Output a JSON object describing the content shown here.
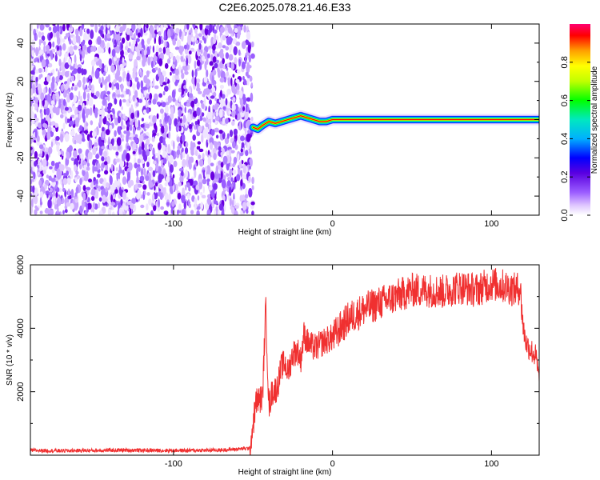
{
  "title": "C2E6.2025.078.21.46.E33",
  "chart_data": [
    {
      "type": "heatmap",
      "xlabel": "Height of straight line (km)",
      "ylabel": "Frequency (Hz)",
      "xlim": [
        -190,
        130
      ],
      "ylim": [
        -50,
        50
      ],
      "x_ticks": [
        -100,
        0,
        100
      ],
      "y_ticks": [
        -40,
        -20,
        0,
        20,
        40
      ],
      "noise_region": [
        -190,
        -50
      ],
      "signal_ridge": [
        {
          "x": -50,
          "y": -4
        },
        {
          "x": -47,
          "y": -5
        },
        {
          "x": -44,
          "y": -3
        },
        {
          "x": -40,
          "y": -1
        },
        {
          "x": -36,
          "y": -2
        },
        {
          "x": -32,
          "y": -1
        },
        {
          "x": -28,
          "y": 0
        },
        {
          "x": -24,
          "y": 1
        },
        {
          "x": -20,
          "y": 2
        },
        {
          "x": -16,
          "y": 1
        },
        {
          "x": -12,
          "y": 0
        },
        {
          "x": -8,
          "y": -1
        },
        {
          "x": -4,
          "y": -1
        },
        {
          "x": 0,
          "y": 0
        },
        {
          "x": 20,
          "y": 0
        },
        {
          "x": 60,
          "y": 0
        },
        {
          "x": 100,
          "y": 0
        },
        {
          "x": 130,
          "y": 0
        }
      ],
      "colorbar": {
        "label": "Normalized spectral amplitude",
        "range": [
          0,
          1
        ],
        "ticks": [
          "0.0",
          "0.2",
          "0.4",
          "0.6",
          "0.8"
        ],
        "colors": [
          "#ffffff",
          "#e0c8ff",
          "#9a5cff",
          "#6a00e0",
          "#0000ff",
          "#00b0ff",
          "#00e8c0",
          "#00ff00",
          "#c0ff00",
          "#ffff00",
          "#ffa000",
          "#ff0000",
          "#ff0070"
        ]
      }
    },
    {
      "type": "line",
      "xlabel": "Height of straight line (km)",
      "ylabel": "SNR (10 * v/v)",
      "xlim": [
        -190,
        130
      ],
      "ylim": [
        0,
        6000
      ],
      "x_ticks": [
        -100,
        0,
        100
      ],
      "y_ticks": [
        2000,
        4000,
        6000
      ],
      "color": "#f03030",
      "series": [
        {
          "x": [
            -190,
            -170,
            -150,
            -130,
            -110,
            -90,
            -70,
            -52,
            -48,
            -44,
            -42,
            -40,
            -38,
            -35,
            -32,
            -30,
            -28,
            -25,
            -22,
            -20,
            -18,
            -15,
            -12,
            -10,
            -5,
            0,
            5,
            10,
            20,
            30,
            40,
            50,
            60,
            70,
            80,
            90,
            100,
            110,
            115,
            118,
            120,
            122,
            125,
            128,
            130
          ],
          "values": [
            150,
            140,
            150,
            160,
            150,
            150,
            160,
            220,
            1700,
            1800,
            4700,
            1500,
            2000,
            2100,
            2800,
            2900,
            2600,
            3200,
            3300,
            3000,
            3800,
            3500,
            3400,
            3400,
            3600,
            3700,
            4000,
            4300,
            4600,
            4800,
            5000,
            5200,
            5200,
            5150,
            5300,
            5200,
            5400,
            5300,
            5200,
            5300,
            4000,
            3500,
            3300,
            3100,
            2300
          ]
        }
      ]
    }
  ]
}
